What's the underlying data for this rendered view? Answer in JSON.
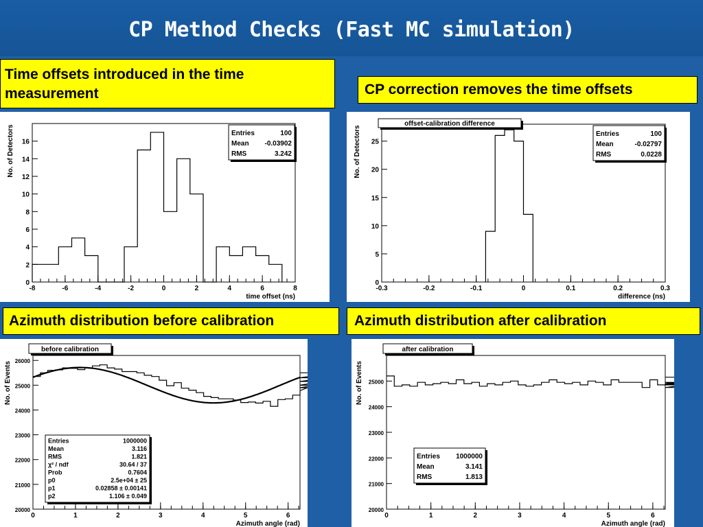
{
  "slide": {
    "title": "CP Method Checks (Fast MC simulation)",
    "captions": {
      "top_left": [
        "Time offsets introduced in the time",
        "measurement"
      ],
      "top_right": "CP correction removes the time offsets",
      "bottom_left": "Azimuth distribution before calibration",
      "bottom_right": "Azimuth distribution after calibration"
    },
    "colors": {
      "background": "#1f5fa6",
      "caption_fill": "#ffff00",
      "title": "#ffffff"
    }
  },
  "chart_data": [
    {
      "id": "time_offset",
      "type": "bar",
      "style": "step-histogram",
      "title": "",
      "xlabel": "time offset (ns)",
      "ylabel": "No. of Detectors",
      "xlim": [
        -8,
        8
      ],
      "ylim": [
        0,
        18
      ],
      "xticks": [
        "-8",
        "-6",
        "-4",
        "-2",
        "0",
        "2",
        "4",
        "6",
        "8"
      ],
      "yticks": [
        "0",
        "2",
        "4",
        "6",
        "8",
        "10",
        "12",
        "14",
        "16"
      ],
      "bin_edges": [
        -8,
        -7.2,
        -6.4,
        -5.6,
        -4.8,
        -4,
        -3.2,
        -2.4,
        -1.6,
        -0.8,
        0,
        0.8,
        1.6,
        2.4,
        3.2,
        4,
        4.8,
        5.6,
        6.4,
        7.2
      ],
      "values": [
        2,
        2,
        4,
        5,
        3,
        0,
        0,
        4,
        15,
        17,
        8,
        14,
        10,
        0,
        4,
        3,
        4,
        3,
        2
      ],
      "stats": [
        [
          "Entries",
          "100"
        ],
        [
          "Mean",
          "-0.03902"
        ],
        [
          "RMS",
          "3.242"
        ]
      ],
      "stats_position": "top-right",
      "grid": false
    },
    {
      "id": "difference",
      "type": "bar",
      "style": "step-histogram",
      "title": "offset-calibration difference",
      "xlabel": "difference (ns)",
      "ylabel": "No. of Detectors",
      "xlim": [
        -0.3,
        0.3
      ],
      "ylim": [
        0,
        28
      ],
      "xticks": [
        "-0.3",
        "-0.2",
        "-0.1",
        "0",
        "0.1",
        "0.2",
        "0.3"
      ],
      "yticks": [
        "0",
        "5",
        "10",
        "15",
        "20",
        "25"
      ],
      "bin_edges": [
        -0.08,
        -0.06,
        -0.04,
        -0.02,
        0,
        0.02
      ],
      "values": [
        9,
        26,
        27,
        25,
        12
      ],
      "stats": [
        [
          "Entries",
          "100"
        ],
        [
          "Mean",
          "-0.02797"
        ],
        [
          "RMS",
          "0.0228"
        ]
      ],
      "stats_position": "top-right",
      "grid": false
    },
    {
      "id": "azimuth_before",
      "type": "line",
      "style": "step-histogram-with-fit",
      "title": "before calibration",
      "xlabel": "Azimuth angle (rad)",
      "ylabel": "No. of Events",
      "xlim": [
        0,
        6.28
      ],
      "ylim": [
        20000,
        26200
      ],
      "xticks": [
        "0",
        "1",
        "2",
        "3",
        "4",
        "5",
        "6"
      ],
      "yticks": [
        "20000",
        "21000",
        "22000",
        "23000",
        "24000",
        "25000",
        "26000"
      ],
      "bin_width": 0.1745,
      "values": [
        25350,
        25500,
        25600,
        25620,
        25700,
        25680,
        25630,
        25700,
        25780,
        25820,
        25700,
        25650,
        25550,
        25550,
        25500,
        25400,
        25350,
        25200,
        24980,
        25100,
        24880,
        24800,
        24700,
        24550,
        24500,
        24450,
        24450,
        24400,
        24300,
        24320,
        24280,
        24350,
        24150,
        24420,
        24450,
        24600,
        24780,
        24900,
        25000,
        25150,
        25300,
        25500
      ],
      "fit": {
        "p0": 25000,
        "p1": 0.02858,
        "p2": 1.106
      },
      "stats": [
        [
          "Entries",
          "1000000"
        ],
        [
          "Mean",
          "3.116"
        ],
        [
          "RMS",
          "1.821"
        ],
        [
          "χ² / ndf",
          "30.64 / 37"
        ],
        [
          "Prob",
          "0.7604"
        ],
        [
          "p0",
          "2.5e+04 ± 25"
        ],
        [
          "p1",
          "0.02858 ± 0.00141"
        ],
        [
          "p2",
          "1.106 ± 0.049"
        ]
      ],
      "stats_position": "bottom-left",
      "grid": false
    },
    {
      "id": "azimuth_after",
      "type": "line",
      "style": "step-histogram",
      "title": "after calibration",
      "xlabel": "Azimuth angle (rad)",
      "ylabel": "No. of Events",
      "xlim": [
        0,
        6.28
      ],
      "ylim": [
        20000,
        26000
      ],
      "xticks": [
        "0",
        "1",
        "2",
        "3",
        "4",
        "5",
        "6"
      ],
      "yticks": [
        "20000",
        "21000",
        "22000",
        "23000",
        "24000",
        "25000"
      ],
      "bin_width": 0.1745,
      "values": [
        25200,
        24800,
        24850,
        24800,
        24950,
        24850,
        24900,
        24950,
        24900,
        25050,
        24900,
        24950,
        24800,
        24900,
        24850,
        24950,
        25000,
        24850,
        24800,
        24850,
        24950,
        25050,
        24950,
        24900,
        24950,
        24850,
        25000,
        24950,
        24850,
        25050,
        24950,
        24950,
        24950,
        24750,
        25050,
        24850,
        24900,
        24850,
        24950,
        24750,
        24900,
        24950,
        24850,
        25150
      ],
      "stats": [
        [
          "Entries",
          "1000000"
        ],
        [
          "Mean",
          "3.141"
        ],
        [
          "RMS",
          "1.813"
        ]
      ],
      "stats_position": "bottom-left",
      "grid": false
    }
  ]
}
